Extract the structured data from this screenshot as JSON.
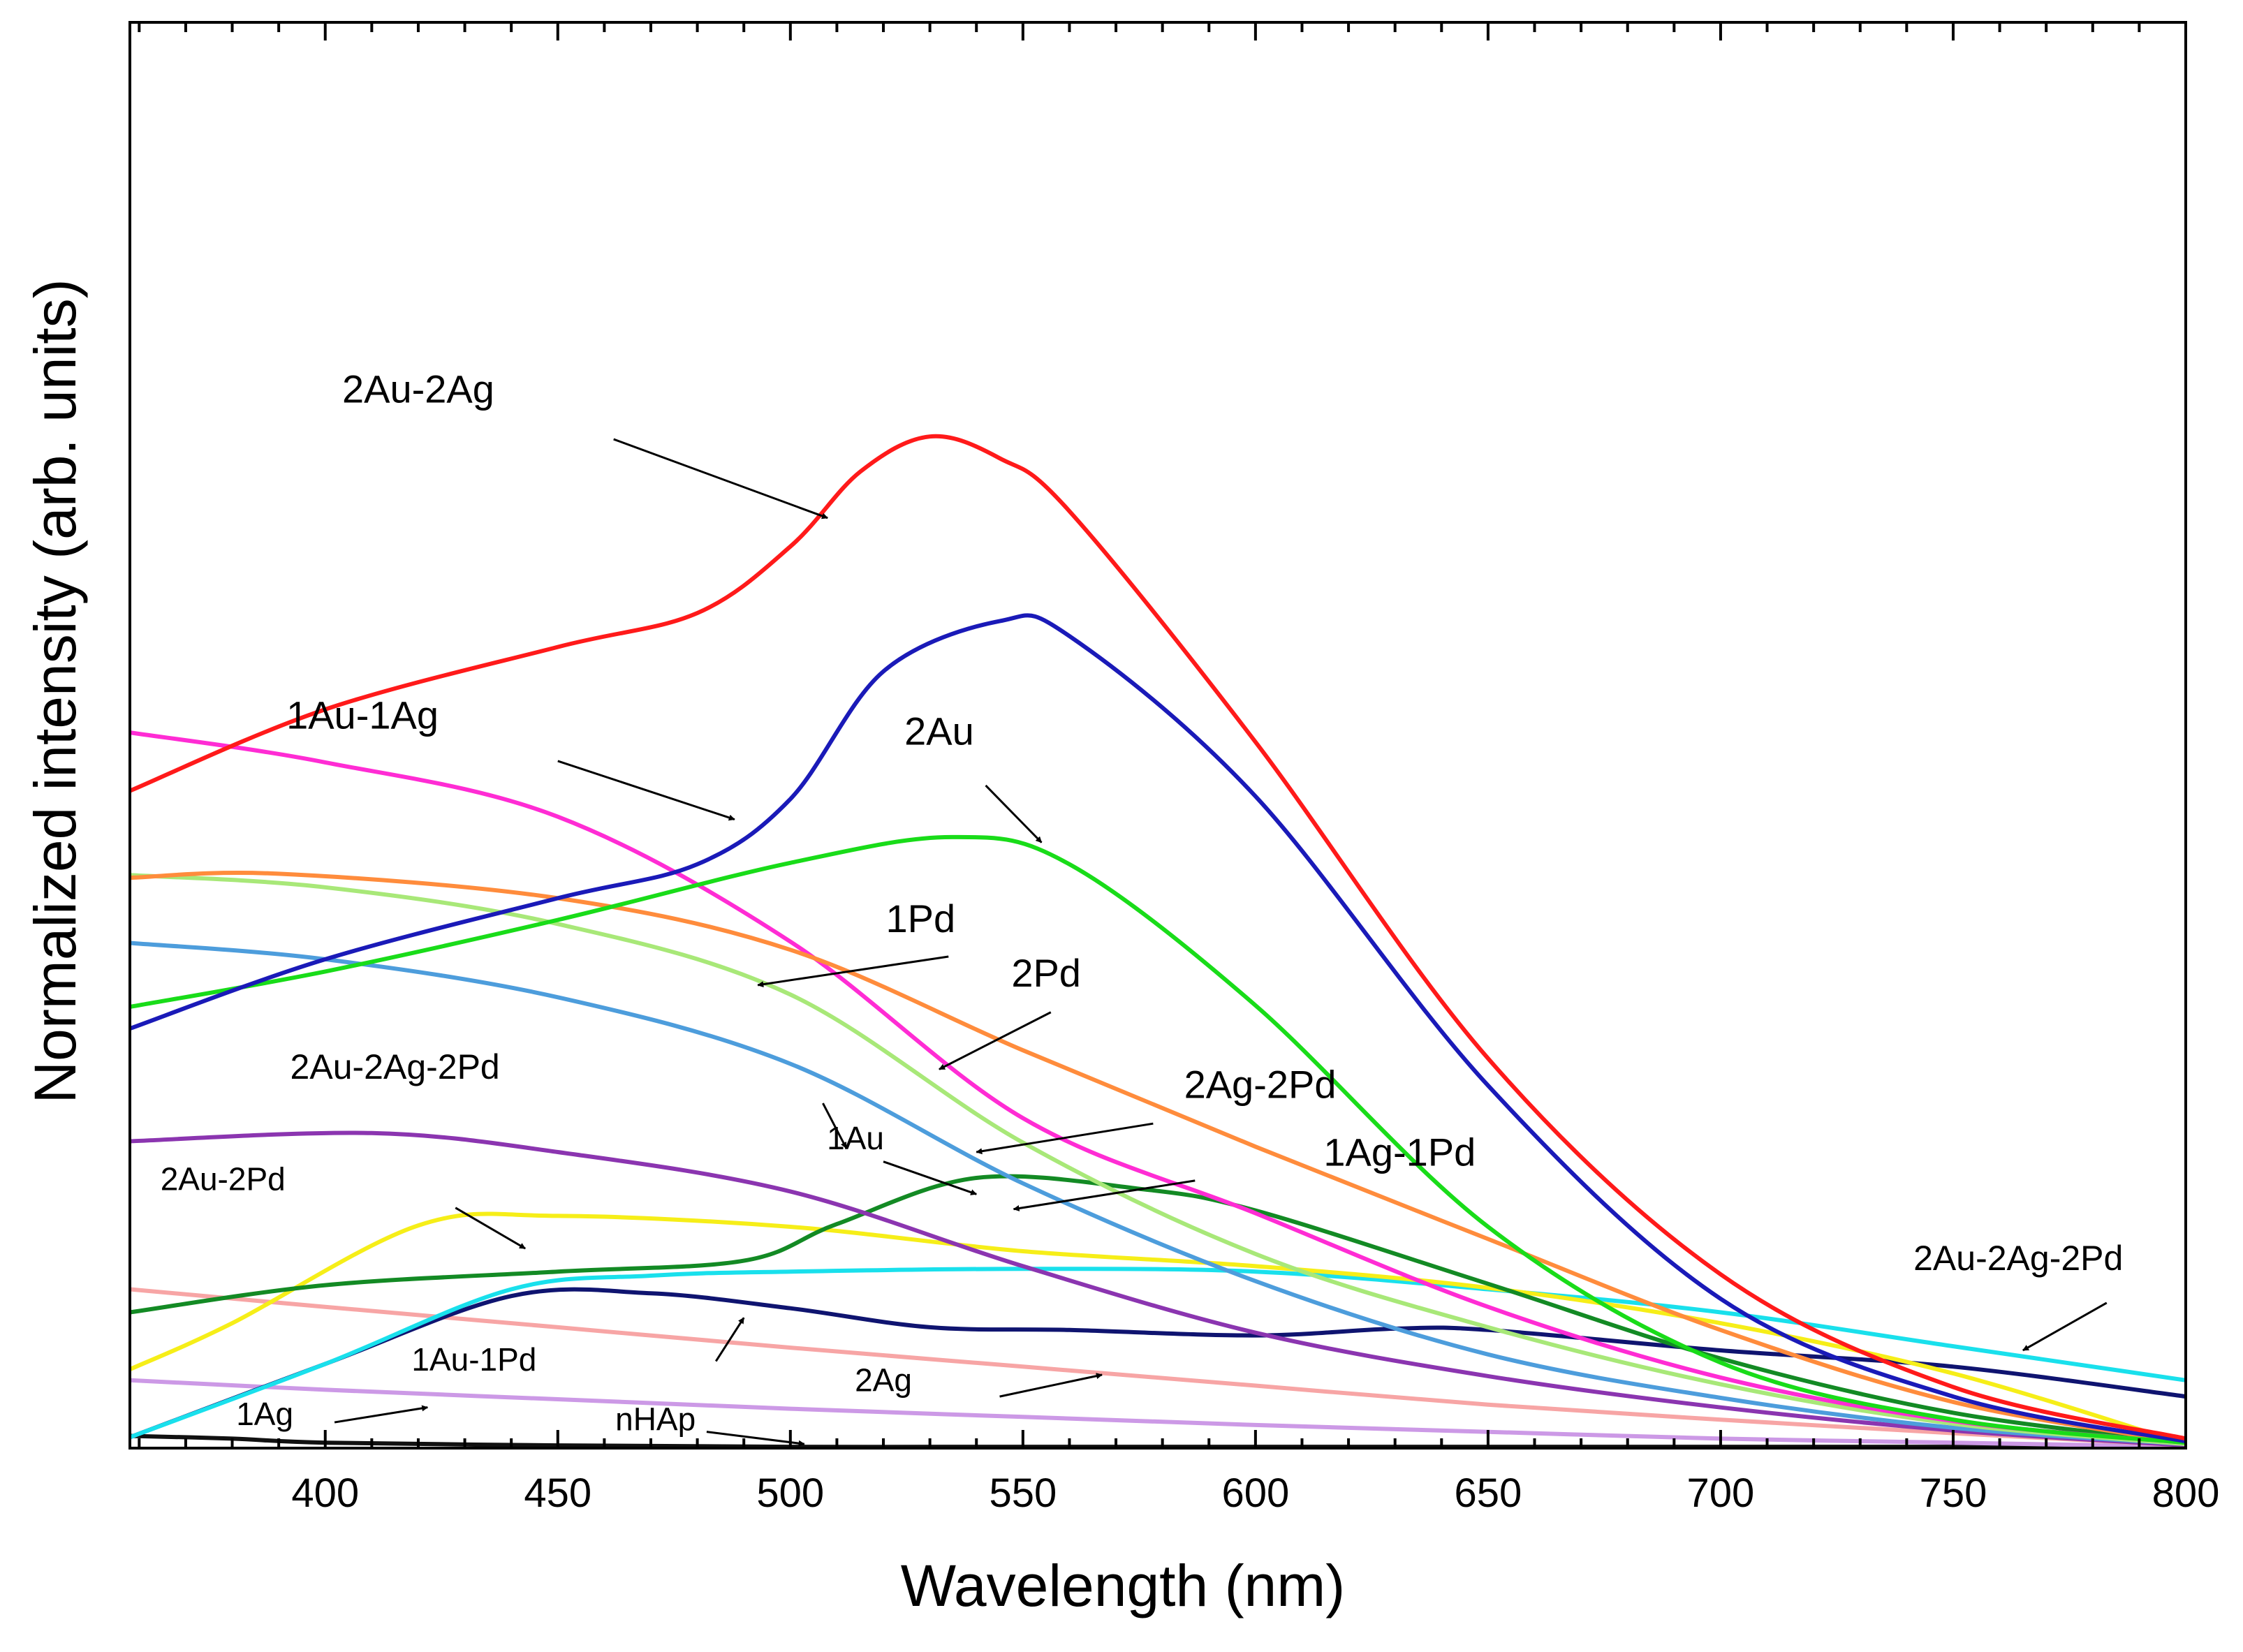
{
  "chart_data": {
    "type": "line",
    "title": "",
    "xlabel": "Wavelength (nm)",
    "ylabel": "Normalized intensity (arb. units)",
    "xlim": [
      358,
      800
    ],
    "ylim": [
      0,
      1.05
    ],
    "xticks": [
      400,
      450,
      500,
      550,
      600,
      650,
      700,
      750,
      800
    ],
    "xtick_labels": [
      "400",
      "450",
      "500",
      "550",
      "600",
      "650",
      "700",
      "750",
      "800"
    ],
    "y_tick_labels_shown": false,
    "grid": false,
    "series": [
      {
        "name": "2Au-2Ag",
        "color": "#ff1a1a",
        "x": [
          358,
          400,
          450,
          480,
          500,
          515,
          530,
          545,
          560,
          600,
          650,
          700,
          750,
          800
        ],
        "y": [
          0.484,
          0.544,
          0.59,
          0.615,
          0.664,
          0.719,
          0.745,
          0.729,
          0.69,
          0.52,
          0.287,
          0.128,
          0.045,
          0.007
        ]
      },
      {
        "name": "1Au-1Ag",
        "color": "#1a1ab8",
        "x": [
          358,
          400,
          450,
          480,
          500,
          520,
          545,
          560,
          600,
          650,
          700,
          750,
          800
        ],
        "y": [
          0.309,
          0.36,
          0.405,
          0.43,
          0.478,
          0.572,
          0.609,
          0.598,
          0.48,
          0.267,
          0.11,
          0.038,
          0.005
        ]
      },
      {
        "name": "2Au",
        "color": "#19dc19",
        "x": [
          358,
          400,
          450,
          500,
          535,
          560,
          600,
          650,
          700,
          750,
          800
        ],
        "y": [
          0.325,
          0.351,
          0.389,
          0.431,
          0.45,
          0.43,
          0.326,
          0.163,
          0.063,
          0.021,
          0.004
        ]
      },
      {
        "name": "1Pd",
        "color": "#ff8c3c",
        "x": [
          358,
          390,
          450,
          500,
          550,
          600,
          650,
          700,
          750,
          800
        ],
        "y": [
          0.42,
          0.423,
          0.405,
          0.367,
          0.293,
          0.222,
          0.154,
          0.087,
          0.034,
          0.004
        ]
      },
      {
        "name": "2Pd",
        "color": "#ff2cd4",
        "x": [
          358,
          400,
          450,
          500,
          550,
          600,
          650,
          700,
          750,
          800
        ],
        "y": [
          0.527,
          0.505,
          0.465,
          0.373,
          0.243,
          0.173,
          0.104,
          0.052,
          0.02,
          0.004
        ]
      },
      {
        "name": "2Ag-2Pd",
        "color": "#a8e878",
        "x": [
          358,
          400,
          450,
          500,
          550,
          600,
          650,
          700,
          750,
          800
        ],
        "y": [
          0.422,
          0.413,
          0.386,
          0.334,
          0.225,
          0.143,
          0.089,
          0.047,
          0.018,
          0.003
        ]
      },
      {
        "name": "1Ag-1Pd",
        "color": "#4d9ddc",
        "x": [
          358,
          400,
          450,
          500,
          550,
          600,
          650,
          700,
          750,
          800
        ],
        "y": [
          0.372,
          0.36,
          0.332,
          0.283,
          0.195,
          0.123,
          0.069,
          0.037,
          0.015,
          0.003
        ]
      },
      {
        "name": "2Au-2Ag-2Pd",
        "color": "#8b35b0",
        "x": [
          358,
          410,
          450,
          500,
          550,
          600,
          650,
          700,
          750,
          800
        ],
        "y": [
          0.226,
          0.232,
          0.218,
          0.189,
          0.134,
          0.085,
          0.053,
          0.03,
          0.013,
          0.002
        ]
      },
      {
        "name": "1Au",
        "color": "#138a24",
        "x": [
          358,
          400,
          450,
          490,
          510,
          540,
          575,
          600,
          650,
          700,
          750,
          800
        ],
        "y": [
          0.1,
          0.12,
          0.13,
          0.138,
          0.165,
          0.199,
          0.191,
          0.175,
          0.121,
          0.066,
          0.026,
          0.004
        ]
      },
      {
        "name": "2Au-2Pd",
        "color": "#f6ee18",
        "x": [
          358,
          380,
          420,
          450,
          500,
          550,
          600,
          650,
          700,
          750,
          800
        ],
        "y": [
          0.058,
          0.092,
          0.164,
          0.171,
          0.163,
          0.145,
          0.134,
          0.118,
          0.092,
          0.055,
          0.003
        ]
      },
      {
        "name": "2Au-2Ag-2Pd (cyan)",
        "color": "#19e0ec",
        "x": [
          358,
          400,
          440,
          470,
          500,
          550,
          600,
          650,
          700,
          750,
          800
        ],
        "y": [
          0.008,
          0.062,
          0.117,
          0.127,
          0.13,
          0.132,
          0.13,
          0.117,
          0.1,
          0.075,
          0.05
        ]
      },
      {
        "name": "1Au-1Pd",
        "color": "#0f1470",
        "x": [
          358,
          400,
          440,
          470,
          500,
          530,
          560,
          600,
          630,
          650,
          700,
          750,
          800
        ],
        "y": [
          0.008,
          0.062,
          0.112,
          0.114,
          0.103,
          0.089,
          0.087,
          0.083,
          0.088,
          0.087,
          0.072,
          0.06,
          0.038
        ]
      },
      {
        "name": "2Ag",
        "color": "#f7a5a5",
        "x": [
          358,
          400,
          450,
          500,
          550,
          600,
          650,
          700,
          750,
          800
        ],
        "y": [
          0.117,
          0.104,
          0.089,
          0.074,
          0.06,
          0.046,
          0.032,
          0.021,
          0.011,
          0.002
        ]
      },
      {
        "name": "1Ag",
        "color": "#cc99e6",
        "x": [
          358,
          400,
          450,
          500,
          550,
          600,
          650,
          700,
          750,
          800
        ],
        "y": [
          0.05,
          0.043,
          0.036,
          0.029,
          0.023,
          0.017,
          0.012,
          0.007,
          0.004,
          0.001
        ]
      },
      {
        "name": "nHAp",
        "color": "#111111",
        "x": [
          358,
          380,
          400,
          450,
          500,
          550,
          600,
          650,
          700,
          750,
          800
        ],
        "y": [
          0.009,
          0.007,
          0.004,
          0.002,
          0.001,
          0.001,
          0.001,
          0.001,
          0.001,
          0.001,
          0.001
        ]
      }
    ],
    "annotations": [
      {
        "text": "2Au-2Ag",
        "x": 420,
        "y": 0.77,
        "arrow_from": [
          462,
          0.743
        ],
        "arrow_to": [
          508,
          0.685
        ]
      },
      {
        "text": "1Au-1Ag",
        "x": 408,
        "y": 0.53,
        "arrow_from": [
          450,
          0.506
        ],
        "arrow_to": [
          488,
          0.463
        ]
      },
      {
        "text": "2Au",
        "x": 532,
        "y": 0.518,
        "arrow_from": [
          542,
          0.488
        ],
        "arrow_to": [
          554,
          0.446
        ]
      },
      {
        "text": "1Pd",
        "x": 528,
        "y": 0.38,
        "arrow_from": [
          534,
          0.362
        ],
        "arrow_to": [
          493,
          0.341
        ]
      },
      {
        "text": "2Pd",
        "x": 555,
        "y": 0.34,
        "arrow_from": [
          556,
          0.321
        ],
        "arrow_to": [
          532,
          0.279
        ]
      },
      {
        "text": "2Au-2Ag-2Pd",
        "x": 415,
        "y": 0.272,
        "arrow_from": [
          507,
          0.254
        ],
        "arrow_to": [
          512,
          0.221
        ]
      },
      {
        "text": "2Ag-2Pd",
        "x": 601,
        "y": 0.258,
        "arrow_from": [
          578,
          0.239
        ],
        "arrow_to": [
          540,
          0.218
        ]
      },
      {
        "text": "1Au",
        "x": 514,
        "y": 0.22,
        "arrow_from": [
          520,
          0.211
        ],
        "arrow_to": [
          540,
          0.187
        ]
      },
      {
        "text": "1Ag-1Pd",
        "x": 631,
        "y": 0.208,
        "arrow_from": [
          587,
          0.197
        ],
        "arrow_to": [
          548,
          0.176
        ]
      },
      {
        "text": "2Au-2Pd",
        "x": 378,
        "y": 0.19,
        "arrow_from": [
          428,
          0.177
        ],
        "arrow_to": [
          443,
          0.147
        ]
      },
      {
        "text": "2Au-2Ag-2Pd",
        "x": 764,
        "y": 0.131,
        "arrow_from": [
          783,
          0.107
        ],
        "arrow_to": [
          765,
          0.072
        ]
      },
      {
        "text": "1Au-1Pd",
        "x": 432,
        "y": 0.057,
        "arrow_from": [
          484,
          0.064
        ],
        "arrow_to": [
          490,
          0.096
        ]
      },
      {
        "text": "2Ag",
        "x": 520,
        "y": 0.042,
        "arrow_from": [
          545,
          0.038
        ],
        "arrow_to": [
          567,
          0.054
        ]
      },
      {
        "text": "1Ag",
        "x": 387,
        "y": 0.017,
        "arrow_from": [
          402,
          0.019
        ],
        "arrow_to": [
          422,
          0.03
        ]
      },
      {
        "text": "nHAp",
        "x": 471,
        "y": 0.013,
        "arrow_from": [
          482,
          0.012
        ],
        "arrow_to": [
          503,
          0.003
        ]
      }
    ]
  }
}
